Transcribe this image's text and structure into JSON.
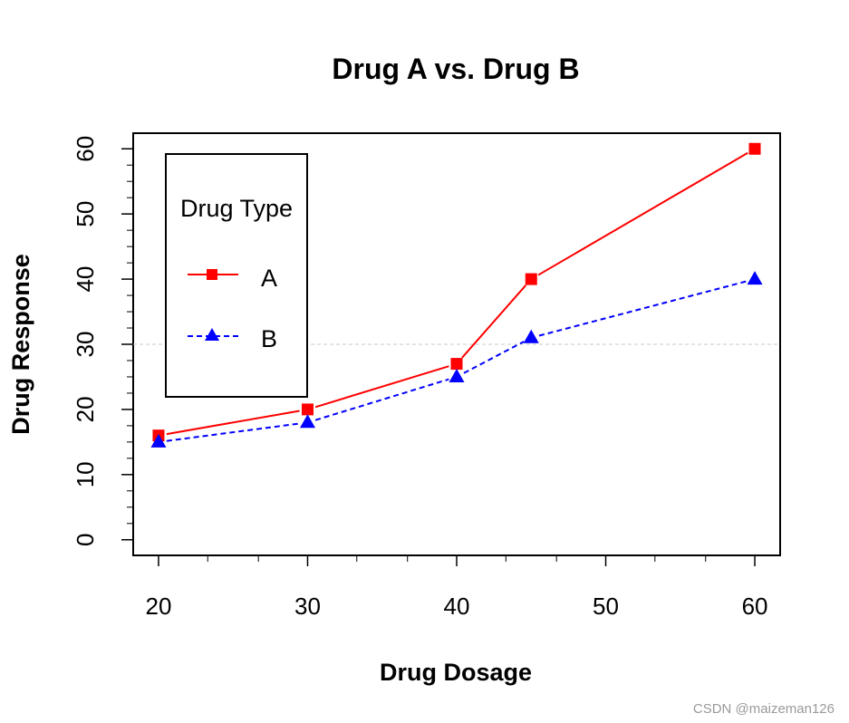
{
  "chart_data": {
    "type": "line",
    "title": "Drug A vs. Drug B",
    "xlabel": "Drug Dosage",
    "ylabel": "Drug Response",
    "x": [
      20,
      30,
      40,
      45,
      60
    ],
    "xlim": [
      18.3,
      61.7
    ],
    "ylim": [
      -2.4,
      62.4
    ],
    "xticks": [
      20,
      30,
      40,
      50,
      60
    ],
    "xminor": [
      23.3,
      26.7,
      33.3,
      36.7,
      43.3,
      46.7,
      53.3,
      56.7
    ],
    "yticks": [
      0,
      10,
      20,
      30,
      40,
      50,
      60
    ],
    "yminor": [
      2.5,
      5,
      7.5,
      12.5,
      15,
      17.5,
      22.5,
      25,
      27.5,
      32.5,
      35,
      37.5,
      42.5,
      45,
      47.5,
      52.5,
      55,
      57.5
    ],
    "reference_line": {
      "y": 30,
      "color": "#c8c8c8"
    },
    "series": [
      {
        "name": "A",
        "values": [
          16,
          20,
          27,
          40,
          60
        ],
        "color": "#ff0000",
        "marker": "square",
        "line": "solid"
      },
      {
        "name": "B",
        "values": [
          15,
          18,
          25,
          31,
          40
        ],
        "color": "#0000ff",
        "marker": "triangle",
        "line": "dashed"
      }
    ],
    "legend": {
      "title": "Drug Type",
      "position": "top-left"
    }
  },
  "watermark": "CSDN @maizeman126"
}
